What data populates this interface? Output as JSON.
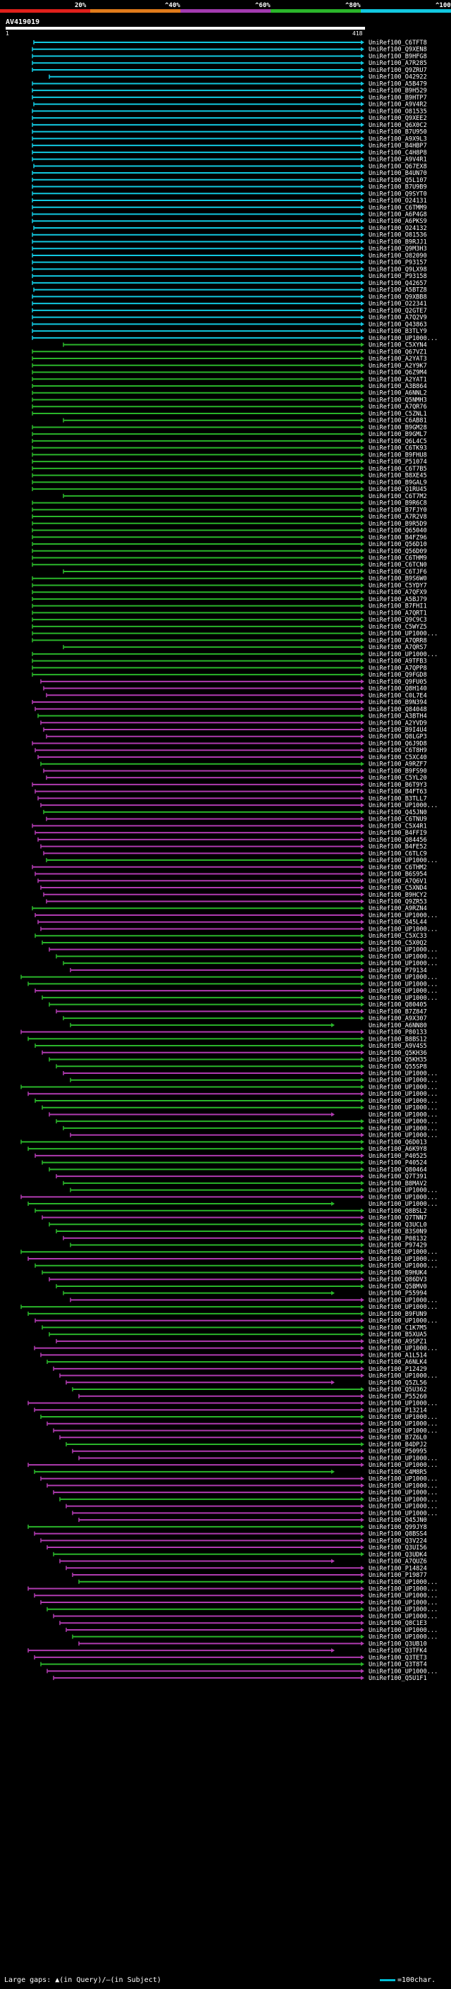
{
  "chart_data": {
    "type": "alignment-overview",
    "query_id": "AV419019",
    "query_start": "1",
    "query_end": "418",
    "query_length": 418,
    "identity_bins": [
      {
        "label": "20%",
        "color": "#e0201b"
      },
      {
        "label": "^40%",
        "color": "#e07b1b"
      },
      {
        "label": "^60%",
        "color": "#a33bb0"
      },
      {
        "label": "^80%",
        "color": "#2ab52a"
      },
      {
        "label": "^100%",
        "color": "#12c8e0"
      }
    ],
    "hits": [
      "UniRef100_C6TFT8",
      "UniRef100_Q9XEN8",
      "UniRef100_B9HFG8",
      "UniRef100_A7R285",
      "UniRef100_Q9ZRU7",
      "UniRef100_O42922",
      "UniRef100_A5B479",
      "UniRef100_B9H529",
      "UniRef100_B9HTP7",
      "UniRef100_A9V4R2",
      "UniRef100_O81535",
      "UniRef100_Q9XEE2",
      "UniRef100_Q6X0C2",
      "UniRef100_B7U950",
      "UniRef100_A9X9L3",
      "UniRef100_B4HBP7",
      "UniRef100_C4H8P8",
      "UniRef100_A9V4R1",
      "UniRef100_Q67EX8",
      "UniRef100_B4UN70",
      "UniRef100_Q5L107",
      "UniRef100_B7U9B9",
      "UniRef100_Q9SYT0",
      "UniRef100_O24131",
      "UniRef100_C6TMM9",
      "UniRef100_A6P4G8",
      "UniRef100_A6PKS9",
      "UniRef100_O24132",
      "UniRef100_O81536",
      "UniRef100_B9RJJ1",
      "UniRef100_Q9M3H3",
      "UniRef100_O82090",
      "UniRef100_P93157",
      "UniRef100_Q9LX98",
      "UniRef100_P93158",
      "UniRef100_Q42657",
      "UniRef100_A5BTZ8",
      "UniRef100_Q9XBB8",
      "UniRef100_O22341",
      "UniRef100_Q2GTE7",
      "UniRef100_A7Q2V9",
      "UniRef100_Q43863",
      "UniRef100_B3TLY9",
      "UniRef100_UP1000...",
      "UniRef100_C5XYN4",
      "UniRef100_Q67VZ1",
      "UniRef100_A2YAT3",
      "UniRef100_A2Y9K7",
      "UniRef100_Q6Z9M4",
      "UniRef100_A2YAT1",
      "UniRef100_A3B864",
      "UniRef100_A6NNL2",
      "UniRef100_Q5NMH3",
      "UniRef100_A7QR76",
      "UniRef100_C5ZNL1",
      "UniRef100_C6AB81",
      "UniRef100_B9GM28",
      "UniRef100_B9GML7",
      "UniRef100_Q6L4C5",
      "UniRef100_C6TK93",
      "UniRef100_B9FHU8",
      "UniRef100_P51074",
      "UniRef100_C6T7B5",
      "UniRef100_B8XE45",
      "UniRef100_B9GAL9",
      "UniRef100_Q1RU45",
      "UniRef100_C6T7M2",
      "UniRef100_B9R6C8",
      "UniRef100_B7FJY0",
      "UniRef100_A7R2V8",
      "UniRef100_B9R5D9",
      "UniRef100_Q65040",
      "UniRef100_B4FZ96",
      "UniRef100_Q56D10",
      "UniRef100_Q56D09",
      "UniRef100_C6THM9",
      "UniRef100_C6TCN0",
      "UniRef100_C6TJF6",
      "UniRef100_B9S6W0",
      "UniRef100_C5YDY7",
      "UniRef100_A7QFX9",
      "UniRef100_A5BJ79",
      "UniRef100_B7FHI1",
      "UniRef100_A7QRT1",
      "UniRef100_Q9C9C3",
      "UniRef100_C5WYZ5",
      "UniRef100_UP1000...",
      "UniRef100_A7QRR8",
      "UniRef100_A7QRS7",
      "UniRef100_UP1000...",
      "UniRef100_A9TFB3",
      "UniRef100_A7QPP8",
      "UniRef100_Q9FGD8",
      "UniRef100_Q9FU05",
      "UniRef100_Q8H140",
      "UniRef100_C0L7E4",
      "UniRef100_B9N394",
      "UniRef100_Q84048",
      "UniRef100_A3BTH4",
      "UniRef100_A2YVD9",
      "UniRef100_B9I4U4",
      "UniRef100_Q8LGP3",
      "UniRef100_Q6J9D8",
      "UniRef100_C6T8H9",
      "UniRef100_C5XC40",
      "UniRef100_A9RZF7",
      "UniRef100_B9FS90",
      "UniRef100_C5YL20",
      "UniRef100_B6T9Y3",
      "UniRef100_B4FT63",
      "UniRef100_B3TLL7",
      "UniRef100_UP1000...",
      "UniRef100_Q45JN0",
      "UniRef100_C6TNU9",
      "UniRef100_C5X4R1",
      "UniRef100_B4FFI9",
      "UniRef100_Q84456",
      "UniRef100_B4FE52",
      "UniRef100_C6TLC9",
      "UniRef100_UP1000...",
      "UniRef100_C6THM2",
      "UniRef100_B6S954",
      "UniRef100_A7Q6V1",
      "UniRef100_C5XND4",
      "UniRef100_B9HCY2",
      "UniRef100_Q9ZR53",
      "UniRef100_A9RZN4",
      "UniRef100_UP1000...",
      "UniRef100_Q45L44",
      "UniRef100_UP1000...",
      "UniRef100_C5XC33",
      "UniRef100_C5X0Q2",
      "UniRef100_UP1000...",
      "UniRef100_UP1000...",
      "UniRef100_UP1000...",
      "UniRef100_P79134",
      "UniRef100_UP1000...",
      "UniRef100_UP1000...",
      "UniRef100_UP1000...",
      "UniRef100_UP1000...",
      "UniRef100_Q80405",
      "UniRef100_B7Z847",
      "UniRef100_A9X307",
      "UniRef100_A6NN80",
      "UniRef100_P80133",
      "UniRef100_B8BS12",
      "UniRef100_A9V4S5",
      "UniRef100_Q5KH36",
      "UniRef100_Q5KH35",
      "UniRef100_Q55SP8",
      "UniRef100_UP1000...",
      "UniRef100_UP1000...",
      "UniRef100_UP1000...",
      "UniRef100_UP1000...",
      "UniRef100_UP1000...",
      "UniRef100_UP1000...",
      "UniRef100_UP1000...",
      "UniRef100_UP1000...",
      "UniRef100_UP1000...",
      "UniRef100_UP1000...",
      "UniRef100_Q6D013",
      "UniRef100_A6K9Y8",
      "UniRef100_P40525",
      "UniRef100_P40524",
      "UniRef100_Q80464",
      "UniRef100_Q7T391",
      "UniRef100_B8MAV2",
      "UniRef100_UP1000...",
      "UniRef100_UP1000...",
      "UniRef100_UP1000...",
      "UniRef100_Q8BSL2",
      "UniRef100_Q7TNN7",
      "UniRef100_Q3UCL0",
      "UniRef100_B3S0N9",
      "UniRef100_P08132",
      "UniRef100_P97429",
      "UniRef100_UP1000...",
      "UniRef100_UP1000...",
      "UniRef100_UP1000...",
      "UniRef100_B9HUK4",
      "UniRef100_Q86DV3",
      "UniRef100_Q5BMV0",
      "UniRef100_P55994",
      "UniRef100_UP1000...",
      "UniRef100_UP1000...",
      "UniRef100_B9FUN9",
      "UniRef100_UP1000...",
      "UniRef100_C1K7M5",
      "UniRef100_B5XUA5",
      "UniRef100_A9SPZ1",
      "UniRef100_UP1000...",
      "UniRef100_A1L514",
      "UniRef100_A6NLK4",
      "UniRef100_P12429",
      "UniRef100_UP1000...",
      "UniRef100_Q5ZL56",
      "UniRef100_Q5U362",
      "UniRef100_P55260",
      "UniRef100_UP1000...",
      "UniRef100_P13214",
      "UniRef100_UP1000...",
      "UniRef100_UP1000...",
      "UniRef100_UP1000...",
      "UniRef100_B7Z6L0",
      "UniRef100_B4DPJ2",
      "UniRef100_P50995",
      "UniRef100_UP1000...",
      "UniRef100_UP1000...",
      "UniRef100_C4M8R5",
      "UniRef100_UP1000...",
      "UniRef100_UP1000...",
      "UniRef100_UP1000...",
      "UniRef100_UP1000...",
      "UniRef100_UP1000...",
      "UniRef100_UP1000...",
      "UniRef100_Q45JN0",
      "UniRef100_Q99JY8",
      "UniRef100_Q8BSS4",
      "UniRef100_Q3V224",
      "UniRef100_Q3UI56",
      "UniRef100_Q3UDK4",
      "UniRef100_A7QUZ6",
      "UniRef100_P14824",
      "UniRef100_P19877",
      "UniRef100_UP1000...",
      "UniRef100_UP1000...",
      "UniRef100_UP1000...",
      "UniRef100_UP1000...",
      "UniRef100_UP1000...",
      "UniRef100_UP1000...",
      "UniRef100_Q8C1E3",
      "UniRef100_UP1000...",
      "UniRef100_UP1000...",
      "UniRef100_Q3UB10",
      "UniRef100_Q3TFK4",
      "UniRef100_Q3TET3",
      "UniRef100_Q3T8T4",
      "UniRef100_UP1000...",
      "UniRef100_Q5U1F1"
    ],
    "scale_note": "=100char.",
    "legend_gaps": "Large gaps: ▲(in Query)/—(in Subject)"
  }
}
